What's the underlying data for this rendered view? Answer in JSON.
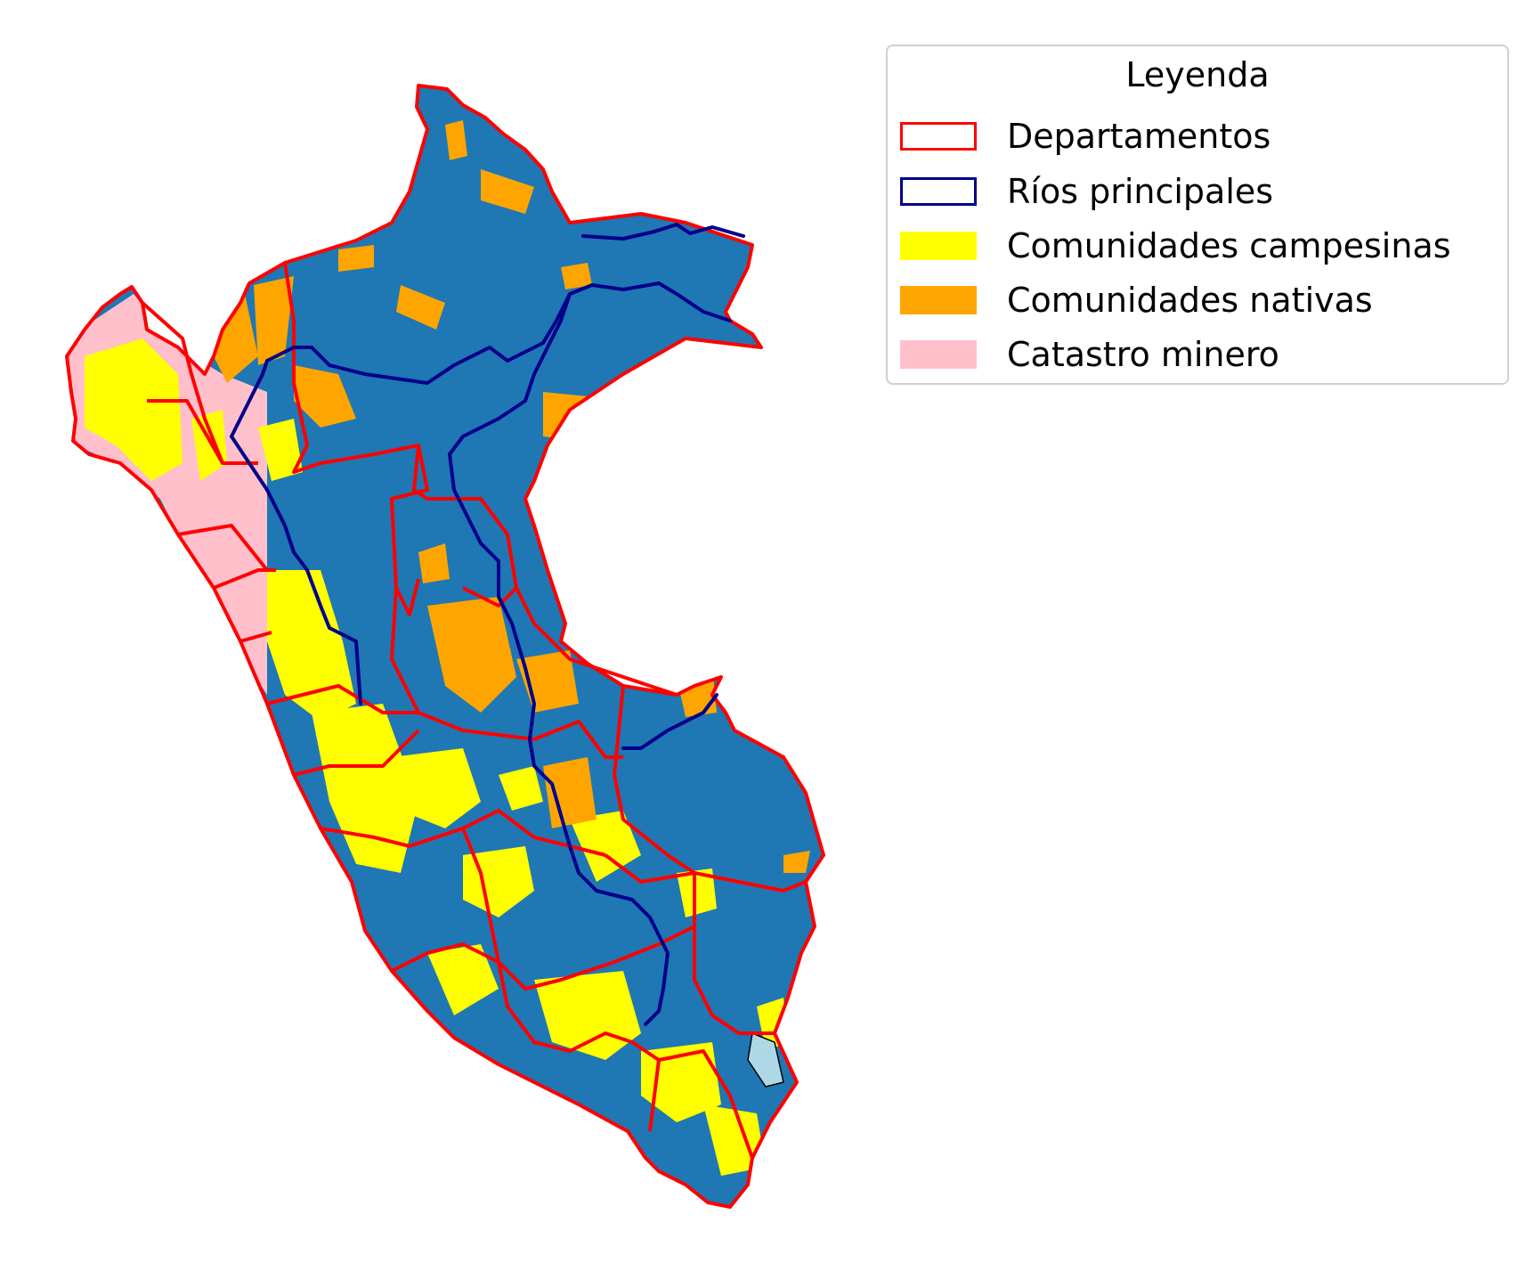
{
  "map": {
    "colors": {
      "country_fill": "#1f77b4",
      "departments": "#ff0000",
      "rivers": "#00008b",
      "campesinas": "#ffff00",
      "nativas": "#ffa500",
      "minero": "#ffc0cb",
      "lake": "#add8e6"
    }
  },
  "legend": {
    "title": "Leyenda",
    "items": [
      {
        "label": "Departamentos",
        "swatch": "outline",
        "color": "#ff0000"
      },
      {
        "label": "Ríos principales",
        "swatch": "outline",
        "color": "#00008b"
      },
      {
        "label": "Comunidades campesinas",
        "swatch": "fill",
        "color": "#ffff00"
      },
      {
        "label": "Comunidades nativas",
        "swatch": "fill",
        "color": "#ffa500"
      },
      {
        "label": "Catastro minero",
        "swatch": "fill",
        "color": "#ffc0cb"
      }
    ]
  }
}
